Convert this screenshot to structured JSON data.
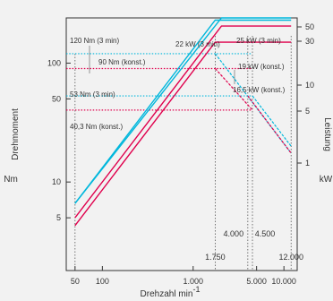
{
  "chart_data": {
    "type": "line",
    "xlabel": "Drehzahl min",
    "xlabel_sup": "-1",
    "ylabel_left": "Drehmoment",
    "ylabel_left_unit": "Nm",
    "ylabel_right": "Leistung",
    "ylabel_right_unit": "kW",
    "xscale": "log",
    "yscale": "log",
    "grid": false,
    "xlim": [
      40,
      14000
    ],
    "ylim_left": [
      1.8,
      240
    ],
    "x_ticks": [
      {
        "value": 50,
        "label": "50"
      },
      {
        "value": 100,
        "label": "100"
      },
      {
        "value": 1000,
        "label": "1.000"
      },
      {
        "value": 5000,
        "label": "5.000"
      },
      {
        "value": 10000,
        "label": "10.000"
      }
    ],
    "y_left_ticks": [
      {
        "value": 5,
        "label": "5"
      },
      {
        "value": 10,
        "label": "10"
      },
      {
        "value": 50,
        "label": "50"
      },
      {
        "value": 100,
        "label": "100"
      }
    ],
    "y_right_ticks": [
      {
        "value": 1,
        "label": "1"
      },
      {
        "value": 5,
        "label": "5"
      },
      {
        "value": 10,
        "label": "10"
      },
      {
        "value": 30,
        "label": "30"
      },
      {
        "value": 50,
        "label": "50"
      }
    ],
    "vertical_markers": [
      {
        "value": 1750,
        "label": "1.750"
      },
      {
        "value": 4000,
        "label": "4.000"
      },
      {
        "value": 4500,
        "label": "4.500"
      },
      {
        "value": 12000,
        "label": "12.000"
      }
    ],
    "torque_series": [
      {
        "label": "120 Nm (3 min)",
        "value": 120,
        "color": "#00b7dc",
        "dash": "dotted"
      },
      {
        "label": "90 Nm (konst.)",
        "value": 90,
        "color": "#e0004d",
        "dash": "dotted"
      },
      {
        "label": "53 Nm (3 min)",
        "value": 53,
        "color": "#00b7dc",
        "dash": "dotted"
      },
      {
        "label": "40,3 Nm (konst.)",
        "value": 40.3,
        "color": "#e0004d",
        "dash": "dotted"
      }
    ],
    "power_series": [
      {
        "label": "22 kW (3 min)",
        "color": "#00b7dc",
        "x": [
          50,
          1750,
          12000
        ],
        "y": [
          6.6,
          230,
          230
        ]
      },
      {
        "label": "25 kW (3 min)",
        "color": "#00b7dc",
        "x": [
          50,
          2050,
          12000
        ],
        "y": [
          6.6,
          270,
          270
        ]
      },
      {
        "label": "19 kW (konst.)",
        "color": "#e0004d",
        "x": [
          50,
          2050,
          12000
        ],
        "y": [
          5.0,
          205,
          205
        ]
      },
      {
        "label": "16,5 kW (konst.)",
        "color": "#e0004d",
        "x": [
          50,
          1750,
          12000
        ],
        "y": [
          4.3,
          150,
          150
        ]
      }
    ],
    "falling_lines": [
      {
        "color": "#00b7dc",
        "x": [
          1750,
          12000
        ],
        "y": [
          120,
          17.5
        ]
      },
      {
        "color": "#e0004d",
        "x": [
          4000,
          12000
        ],
        "y": [
          53,
          17.5
        ]
      },
      {
        "color": "#00b7dc",
        "x": [
          4500,
          12000
        ],
        "y": [
          53,
          20
        ]
      },
      {
        "color": "#e0004d",
        "x": [
          1750,
          4500
        ],
        "y": [
          90,
          40.3
        ]
      }
    ]
  },
  "colors": {
    "cyan": "#00b7dc",
    "magenta": "#e0004d",
    "axis": "#333333",
    "marker": "#555555"
  }
}
